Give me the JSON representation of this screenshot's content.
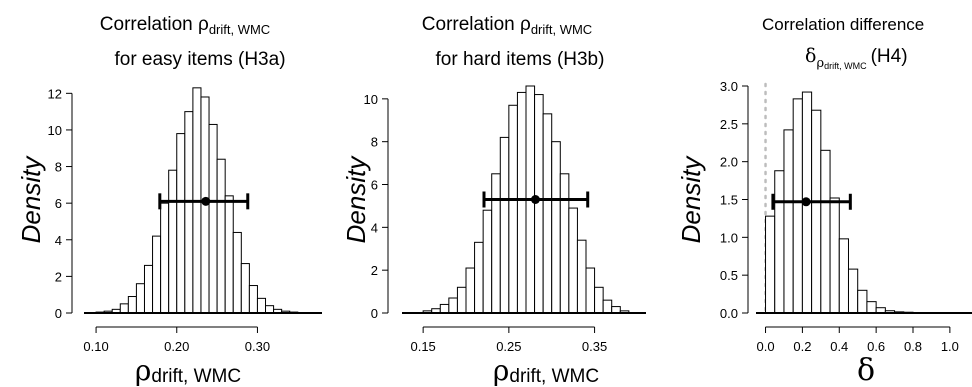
{
  "chart_data": [
    {
      "type": "histogram",
      "title_line1": "Correlation ρ",
      "title_line1_sub": "drift, WMC",
      "title_line2": "for easy items (H3a)",
      "ylabel": "Density",
      "xlabel_symbol": "ρ",
      "xlabel_sub": "drift, WMC",
      "xlim": [
        0.09,
        0.38
      ],
      "ylim": [
        0,
        12.4
      ],
      "x_ticks": [
        "0.10",
        "0.20",
        "0.30"
      ],
      "x_tick_values": [
        0.1,
        0.2,
        0.3
      ],
      "y_ticks": [
        "0",
        "2",
        "4",
        "6",
        "8",
        "10",
        "12"
      ],
      "y_tick_values": [
        0,
        2,
        4,
        6,
        8,
        10,
        12
      ],
      "bin_width": 0.01,
      "bins_x0": [
        0.1,
        0.11,
        0.12,
        0.13,
        0.14,
        0.15,
        0.16,
        0.17,
        0.18,
        0.19,
        0.2,
        0.21,
        0.22,
        0.23,
        0.24,
        0.25,
        0.26,
        0.27,
        0.28,
        0.29,
        0.3,
        0.31,
        0.32,
        0.33,
        0.34
      ],
      "density": [
        0.05,
        0.1,
        0.2,
        0.5,
        0.9,
        1.6,
        2.6,
        4.2,
        6.0,
        7.8,
        9.8,
        11.0,
        12.3,
        11.8,
        10.3,
        8.4,
        6.4,
        4.4,
        2.7,
        1.5,
        0.8,
        0.4,
        0.2,
        0.1,
        0.05
      ],
      "mean": 0.236,
      "interval": [
        0.179,
        0.288
      ],
      "interval_y": 6.1
    },
    {
      "type": "histogram",
      "title_line1": "Correlation ρ",
      "title_line1_sub": "drift, WMC",
      "title_line2": "for hard items (H3b)",
      "ylabel": "Density",
      "xlabel_symbol": "ρ",
      "xlabel_sub": "drift, WMC",
      "xlim": [
        0.13,
        0.41
      ],
      "ylim": [
        0,
        10.6
      ],
      "x_ticks": [
        "0.15",
        "0.25",
        "0.35"
      ],
      "x_tick_values": [
        0.15,
        0.25,
        0.35
      ],
      "y_ticks": [
        "0",
        "2",
        "4",
        "6",
        "8",
        "10"
      ],
      "y_tick_values": [
        0,
        2,
        4,
        6,
        8,
        10
      ],
      "bin_width": 0.01,
      "bins_x0": [
        0.15,
        0.16,
        0.17,
        0.18,
        0.19,
        0.2,
        0.21,
        0.22,
        0.23,
        0.24,
        0.25,
        0.26,
        0.27,
        0.28,
        0.29,
        0.3,
        0.31,
        0.32,
        0.33,
        0.34,
        0.35,
        0.36,
        0.37,
        0.38
      ],
      "density": [
        0.1,
        0.2,
        0.4,
        0.7,
        1.2,
        2.1,
        3.3,
        4.8,
        6.5,
        8.2,
        9.7,
        10.3,
        10.6,
        10.2,
        9.3,
        8.0,
        6.5,
        4.9,
        3.4,
        2.1,
        1.2,
        0.6,
        0.3,
        0.1
      ],
      "mean": 0.281,
      "interval": [
        0.221,
        0.342
      ],
      "interval_y": 5.3
    },
    {
      "type": "histogram",
      "title_line1": "Correlation difference",
      "title_delta_symbol": "δ",
      "title_delta_sub": "ρ",
      "title_delta_subsub": "drift, WMC",
      "title_line2_suffix": "(H4)",
      "ylabel": "Density",
      "xlabel_symbol": "δ",
      "xlim": [
        -0.03,
        1.12
      ],
      "ylim": [
        0,
        3.0
      ],
      "x_ticks": [
        "0.0",
        "0.2",
        "0.4",
        "0.6",
        "0.8",
        "1.0"
      ],
      "x_tick_values": [
        0.0,
        0.2,
        0.4,
        0.6,
        0.8,
        1.0
      ],
      "y_ticks": [
        "0.0",
        "0.5",
        "1.0",
        "1.5",
        "2.0",
        "2.5",
        "3.0"
      ],
      "y_tick_values": [
        0.0,
        0.5,
        1.0,
        1.5,
        2.0,
        2.5,
        3.0
      ],
      "bin_width": 0.05,
      "bins_x0": [
        0.0,
        0.05,
        0.1,
        0.15,
        0.2,
        0.25,
        0.3,
        0.35,
        0.4,
        0.45,
        0.5,
        0.55,
        0.6,
        0.65,
        0.7,
        0.75,
        0.8
      ],
      "density": [
        1.28,
        1.88,
        2.42,
        2.83,
        2.92,
        2.68,
        2.15,
        1.52,
        0.98,
        0.58,
        0.3,
        0.15,
        0.07,
        0.03,
        0.015,
        0.01,
        0.005
      ],
      "mean": 0.22,
      "interval": [
        0.04,
        0.46
      ],
      "interval_y": 1.47,
      "reference_line_x": 0.0
    }
  ]
}
